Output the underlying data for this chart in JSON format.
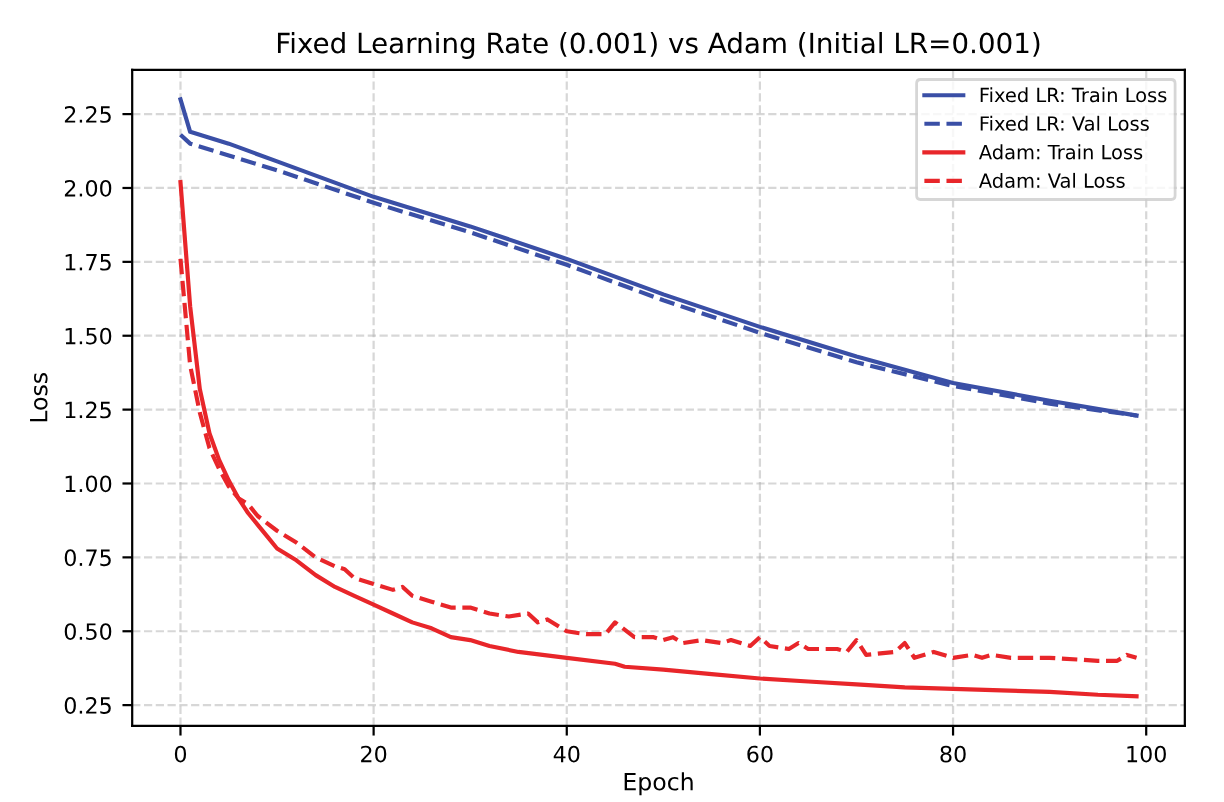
{
  "chart_data": {
    "type": "line",
    "title": "Fixed Learning Rate (0.001) vs Adam (Initial LR=0.001)",
    "xlabel": "Epoch",
    "ylabel": "Loss",
    "xlim": [
      -5,
      104
    ],
    "xticks": [
      0,
      20,
      40,
      60,
      80,
      100
    ],
    "ylim": [
      0.18,
      2.4
    ],
    "yticks": [
      {
        "value": 0.25,
        "label": "0.25"
      },
      {
        "value": 0.5,
        "label": "0.50"
      },
      {
        "value": 0.75,
        "label": "0.75"
      },
      {
        "value": 1.0,
        "label": "1.00"
      },
      {
        "value": 1.25,
        "label": "1.25"
      },
      {
        "value": 1.5,
        "label": "1.50"
      },
      {
        "value": 1.75,
        "label": "1.75"
      },
      {
        "value": 2.0,
        "label": "2.00"
      },
      {
        "value": 2.25,
        "label": "2.25"
      }
    ],
    "grid": true,
    "legend": "top right",
    "marker": "none",
    "series": [
      {
        "name": "Fixed LR: Train Loss",
        "color": "#3a4fa6",
        "line_style": "solid",
        "x": [
          0,
          1,
          5,
          10,
          20,
          30,
          40,
          50,
          60,
          70,
          80,
          90,
          99
        ],
        "values": [
          2.3,
          2.19,
          2.15,
          2.09,
          1.97,
          1.87,
          1.76,
          1.64,
          1.53,
          1.43,
          1.34,
          1.28,
          1.23
        ]
      },
      {
        "name": "Fixed LR: Val Loss",
        "color": "#3a4fa6",
        "line_style": "dashed",
        "x": [
          0,
          1,
          5,
          10,
          20,
          30,
          40,
          50,
          60,
          70,
          80,
          90,
          99
        ],
        "values": [
          2.18,
          2.15,
          2.11,
          2.06,
          1.95,
          1.85,
          1.74,
          1.62,
          1.51,
          1.41,
          1.33,
          1.27,
          1.23
        ]
      },
      {
        "name": "Adam: Train Loss",
        "color": "#e8262a",
        "line_style": "solid",
        "x": [
          0,
          1,
          2,
          3,
          4,
          5,
          6,
          7,
          8,
          9,
          10,
          12,
          14,
          16,
          18,
          20,
          22,
          24,
          26,
          28,
          30,
          32,
          35,
          40,
          45,
          46,
          50,
          55,
          60,
          65,
          70,
          75,
          80,
          85,
          90,
          95,
          99
        ],
        "values": [
          2.02,
          1.6,
          1.32,
          1.17,
          1.08,
          1.01,
          0.95,
          0.9,
          0.86,
          0.82,
          0.78,
          0.74,
          0.69,
          0.65,
          0.62,
          0.59,
          0.56,
          0.53,
          0.51,
          0.48,
          0.47,
          0.45,
          0.43,
          0.41,
          0.39,
          0.38,
          0.37,
          0.355,
          0.34,
          0.33,
          0.32,
          0.31,
          0.305,
          0.3,
          0.295,
          0.285,
          0.28
        ]
      },
      {
        "name": "Adam: Val Loss",
        "color": "#e8262a",
        "line_style": "dashed",
        "x": [
          0,
          1,
          2,
          3,
          4,
          5,
          6,
          7,
          8,
          10,
          12,
          14,
          16,
          17,
          18,
          20,
          22,
          23,
          24,
          26,
          28,
          30,
          32,
          34,
          36,
          37,
          38,
          40,
          42,
          44,
          45,
          47,
          49,
          50,
          51,
          52,
          54,
          56,
          57,
          59,
          60,
          61,
          63,
          64,
          65,
          68,
          69,
          70,
          71,
          74,
          75,
          76,
          78,
          80,
          82,
          83,
          84,
          86,
          90,
          95,
          97,
          98,
          99
        ],
        "values": [
          1.76,
          1.4,
          1.24,
          1.12,
          1.05,
          0.99,
          0.95,
          0.93,
          0.89,
          0.84,
          0.8,
          0.75,
          0.72,
          0.71,
          0.68,
          0.66,
          0.64,
          0.65,
          0.62,
          0.6,
          0.58,
          0.58,
          0.56,
          0.55,
          0.56,
          0.53,
          0.54,
          0.5,
          0.49,
          0.49,
          0.53,
          0.48,
          0.48,
          0.47,
          0.48,
          0.46,
          0.47,
          0.46,
          0.47,
          0.45,
          0.48,
          0.45,
          0.44,
          0.46,
          0.44,
          0.44,
          0.43,
          0.47,
          0.42,
          0.43,
          0.46,
          0.41,
          0.43,
          0.41,
          0.42,
          0.41,
          0.42,
          0.41,
          0.41,
          0.4,
          0.4,
          0.42,
          0.41
        ]
      }
    ]
  }
}
